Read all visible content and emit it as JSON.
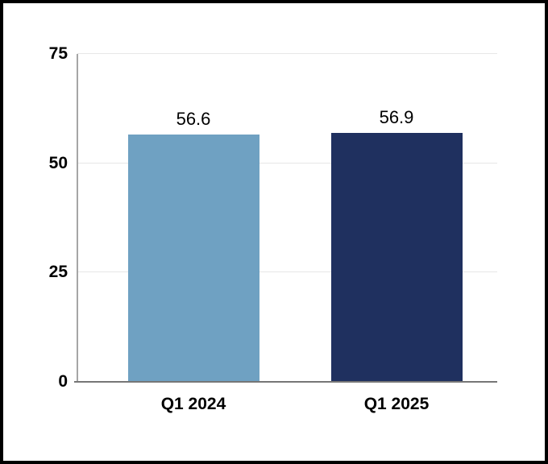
{
  "chart_data": {
    "type": "bar",
    "categories": [
      "Q1 2024",
      "Q1 2025"
    ],
    "values": [
      56.6,
      56.9
    ],
    "data_labels": [
      "56.6",
      "56.9"
    ],
    "bar_colors": [
      "#6FA1C2",
      "#1F305F"
    ],
    "title": "",
    "xlabel": "",
    "ylabel": "",
    "ylim": [
      0,
      75
    ],
    "yticks": [
      0,
      25,
      50,
      75
    ],
    "ytick_labels": [
      "0",
      "25",
      "50",
      "75"
    ],
    "grid": true,
    "legend": "none"
  },
  "palette": {
    "gridline": "#E7E7E7",
    "axis_line": "#A6A6A6",
    "baseline": "#767676",
    "text": "#000000",
    "frame_border": "#000000",
    "background": "#FFFFFF"
  }
}
